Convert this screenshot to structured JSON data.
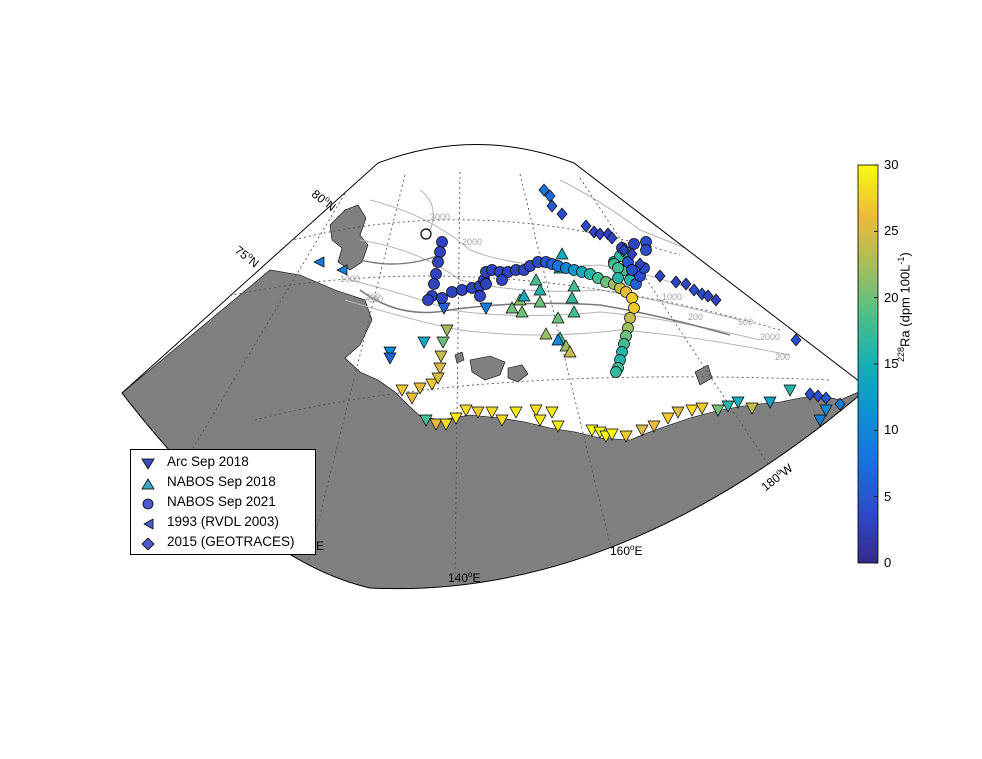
{
  "map": {
    "lat_labels": [
      {
        "deg": "80",
        "suffix": "N"
      },
      {
        "deg": "75",
        "suffix": "N"
      }
    ],
    "lon_labels": [
      {
        "deg": "140",
        "suffix": "E"
      },
      {
        "deg": "160",
        "suffix": "E"
      },
      {
        "deg": "180",
        "suffix": "W"
      },
      {
        "deg": "",
        "suffix": "E"
      }
    ],
    "contour_labels": [
      "3000",
      "2000",
      "1000",
      "500",
      "200",
      "200",
      "1000",
      "2000",
      "500",
      "200"
    ],
    "colors": {
      "land": "#808080",
      "ocean": "#ffffff",
      "contour": "#b4b4b4",
      "shelf_break": "#7a7a7a",
      "graticule": "#555555"
    }
  },
  "legend": [
    {
      "label": "Arc Sep 2018",
      "marker": "triangle-down-icon"
    },
    {
      "label": "NABOS Sep 2018",
      "marker": "triangle-up-icon"
    },
    {
      "label": "NABOS Sep 2021",
      "marker": "circle-icon"
    },
    {
      "label": "1993 (RVDL 2003)",
      "marker": "triangle-left-icon"
    },
    {
      "label": "2015 (GEOTRACES)",
      "marker": "diamond-icon"
    }
  ],
  "colorbar": {
    "title_base": "Ra (dpm 100L",
    "title_sup_mass": "228",
    "title_sup_exp": "-1",
    "title_close": ")",
    "min": 0,
    "max": 30,
    "ticks": [
      "0",
      "5",
      "10",
      "15",
      "20",
      "25",
      "30"
    ],
    "colormap": "parula"
  }
}
